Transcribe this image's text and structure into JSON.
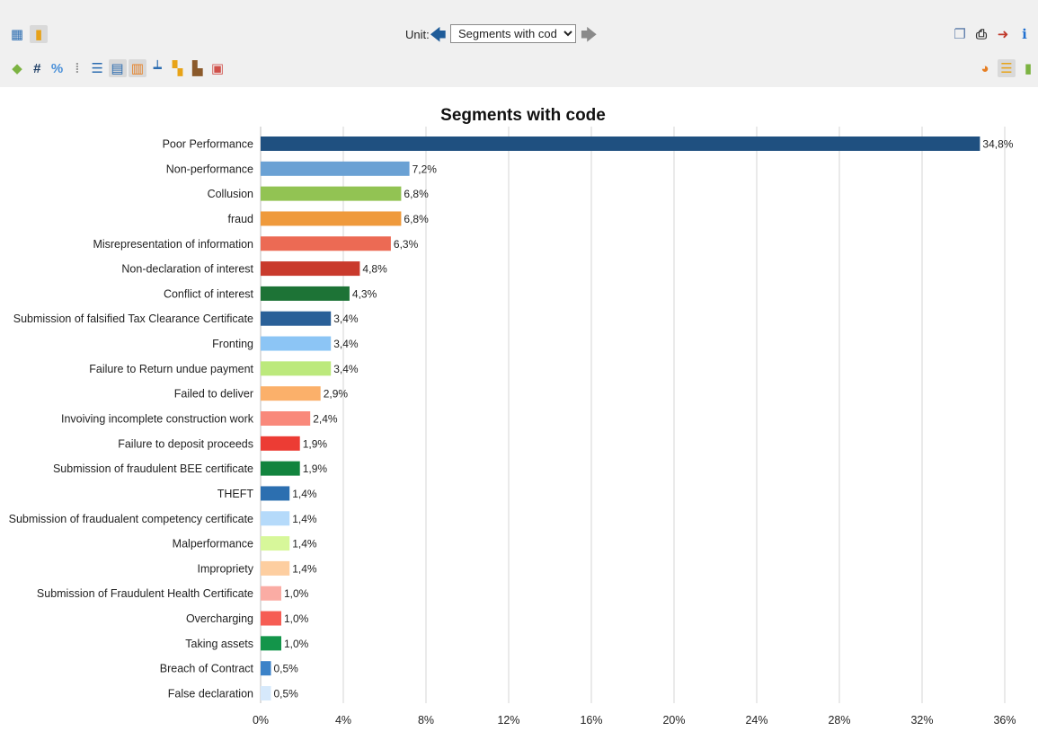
{
  "toolbar": {
    "unit_label": "Unit:",
    "unit_value": "Segments with code",
    "row1_buttons": [
      {
        "icon": "table-view-icon",
        "glyph": "▦",
        "color": "#2b6cb0",
        "selected": false
      },
      {
        "icon": "chart-view-icon",
        "glyph": "▮",
        "color": "#e6a118",
        "selected": true
      }
    ],
    "row2_buttons": [
      {
        "icon": "label-tag-icon",
        "glyph": "◆",
        "color": "#7cb342",
        "selected": false
      },
      {
        "icon": "number-sign-icon",
        "glyph": "#",
        "color": "#1f3f66",
        "selected": false
      },
      {
        "icon": "percent-icon",
        "glyph": "%",
        "color": "#4a90d9",
        "selected": false
      },
      {
        "icon": "sort-bars-icon",
        "glyph": "⁞",
        "color": "#9a9a9a",
        "selected": false
      },
      {
        "icon": "list-icon",
        "glyph": "☰",
        "color": "#2b6cb0",
        "selected": false
      },
      {
        "icon": "grid-lines-icon",
        "glyph": "▤",
        "color": "#2b6cb0",
        "selected": true
      },
      {
        "icon": "value-labels-icon",
        "glyph": "▥",
        "color": "#e67e22",
        "selected": true
      },
      {
        "icon": "axis-labels-icon",
        "glyph": "┷",
        "color": "#2b6cb0",
        "selected": false
      },
      {
        "icon": "color-palette-icon",
        "glyph": "▚",
        "color": "#e8a317",
        "selected": false
      },
      {
        "icon": "format-icon",
        "glyph": "▙",
        "color": "#8b5a2b",
        "selected": false
      },
      {
        "icon": "settings-panel-icon",
        "glyph": "▣",
        "color": "#d0504a",
        "selected": false
      }
    ],
    "right_row1_buttons": [
      {
        "icon": "copy-icon",
        "glyph": "❐",
        "color": "#5a7aa8",
        "selected": false
      },
      {
        "icon": "print-icon",
        "glyph": "⎙",
        "color": "#333333",
        "selected": false
      },
      {
        "icon": "export-icon",
        "glyph": "➜",
        "color": "#c0392b",
        "selected": false
      },
      {
        "icon": "info-icon",
        "glyph": "ℹ",
        "color": "#1f6fd0",
        "selected": false
      }
    ],
    "right_row2_buttons": [
      {
        "icon": "pie-chart-icon",
        "glyph": "◕",
        "color": "#e67e22",
        "selected": false
      },
      {
        "icon": "bar-chart-horizontal-icon",
        "glyph": "☰",
        "color": "#e8a317",
        "selected": true
      },
      {
        "icon": "bar-chart-vertical-icon",
        "glyph": "▮",
        "color": "#7cb342",
        "selected": false
      }
    ]
  },
  "chart_data": {
    "type": "bar",
    "orientation": "horizontal",
    "title": "Segments with code",
    "xlabel": "",
    "ylabel": "",
    "xlim": [
      0,
      36
    ],
    "ticks": [
      "0%",
      "4%",
      "8%",
      "12%",
      "16%",
      "20%",
      "24%",
      "28%",
      "32%",
      "36%"
    ],
    "tick_values": [
      0,
      4,
      8,
      12,
      16,
      20,
      24,
      28,
      32,
      36
    ],
    "grid": "vertical",
    "categories": [
      "Poor Performance",
      "Non-performance",
      "Collusion",
      "fraud",
      "Misrepresentation of information",
      "Non-declaration of interest",
      "Conflict of interest",
      "Submission of falsified Tax Clearance Certificate",
      "Fronting",
      "Failure to Return undue payment",
      "Failed to deliver",
      "Invoiving incomplete construction work",
      "Failure to deposit proceeds",
      "Submission of fraudulent BEE certificate",
      "THEFT",
      "Submission of fraudualent competency certificate",
      "Malperformance",
      "Impropriety",
      "Submission of Fraudulent Health Certificate",
      "Overcharging",
      "Taking assets",
      "Breach of Contract",
      "False declaration"
    ],
    "values": [
      34.8,
      7.2,
      6.8,
      6.8,
      6.3,
      4.8,
      4.3,
      3.4,
      3.4,
      3.4,
      2.9,
      2.4,
      1.9,
      1.9,
      1.4,
      1.4,
      1.4,
      1.4,
      1.0,
      1.0,
      1.0,
      0.5,
      0.5
    ],
    "value_labels": [
      "34,8%",
      "7,2%",
      "6,8%",
      "6,8%",
      "6,3%",
      "4,8%",
      "4,3%",
      "3,4%",
      "3,4%",
      "3,4%",
      "2,9%",
      "2,4%",
      "1,9%",
      "1,9%",
      "1,4%",
      "1,4%",
      "1,4%",
      "1,4%",
      "1,0%",
      "1,0%",
      "1,0%",
      "0,5%",
      "0,5%"
    ],
    "colors": [
      "#1f5080",
      "#6aa1d4",
      "#92c353",
      "#ef9a3c",
      "#ec6a54",
      "#c93a2c",
      "#1d7336",
      "#2a6098",
      "#8cc5f5",
      "#bce97c",
      "#fbb06a",
      "#f9897b",
      "#ec3c34",
      "#12843e",
      "#2c6fb0",
      "#b5dafa",
      "#d7f79a",
      "#fdcea0",
      "#faaca4",
      "#f65d54",
      "#13954a",
      "#3b82c8",
      "#d6e9fb"
    ],
    "gridline_color": "#d4d4d4"
  }
}
